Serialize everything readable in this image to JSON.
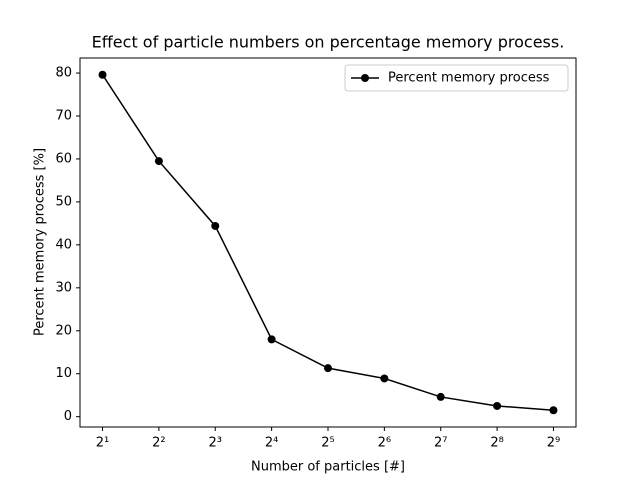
{
  "chart_data": {
    "type": "line",
    "title": "Effect of particle numbers on percentage memory process.",
    "xlabel": "Number of particles [#]",
    "ylabel": "Percent memory process [%]",
    "x": [
      2,
      4,
      8,
      16,
      32,
      64,
      128,
      256,
      512
    ],
    "series": [
      {
        "name": "Percent memory process",
        "color": "#000000",
        "values": [
          79.6,
          59.5,
          44.4,
          18.0,
          11.3,
          8.9,
          4.6,
          2.5,
          1.5
        ]
      }
    ],
    "xscale": "log",
    "xlim": [
      1.516,
      675.6
    ],
    "xticks": [
      {
        "value": 2,
        "label": "2¹"
      },
      {
        "value": 4,
        "label": "2²"
      },
      {
        "value": 8,
        "label": "2³"
      },
      {
        "value": 16,
        "label": "2⁴"
      },
      {
        "value": 32,
        "label": "2⁵"
      },
      {
        "value": 64,
        "label": "2⁶"
      },
      {
        "value": 128,
        "label": "2⁷"
      },
      {
        "value": 256,
        "label": "2⁸"
      },
      {
        "value": 512,
        "label": "2⁹"
      }
    ],
    "ylim": [
      -2.4,
      83.5
    ],
    "yticks": [
      0,
      10,
      20,
      30,
      40,
      50,
      60,
      70,
      80
    ],
    "legend": "upper right",
    "grid": false
  }
}
